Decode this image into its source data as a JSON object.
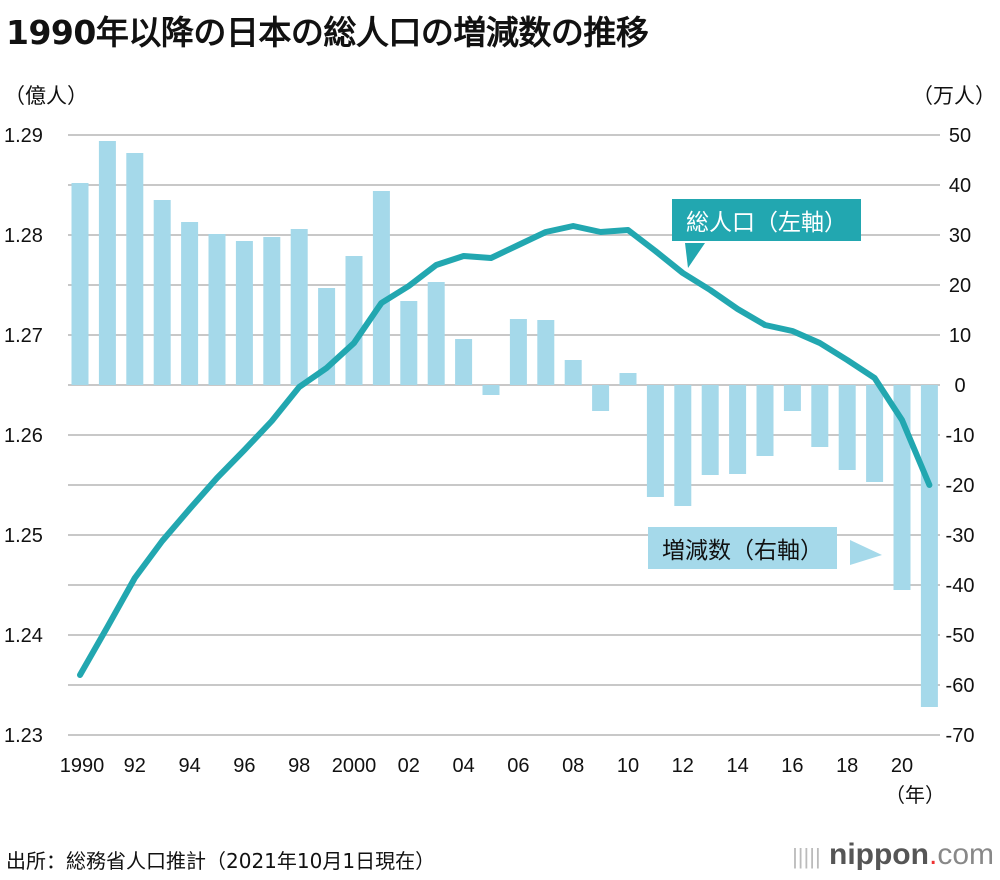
{
  "title": "1990年以降の日本の総人口の増減数の推移",
  "source": "出所：総務省人口推計（2021年10月1日現在）",
  "logo": {
    "name": "nippon",
    "dot": ".",
    "com": "com"
  },
  "chart_data": {
    "type": "bar+line",
    "title": "1990年以降の日本の総人口の増減数の推移",
    "xlabel": "（年）",
    "left_axis": {
      "label": "（億人）",
      "ylim": [
        1.23,
        1.29
      ],
      "ticks": [
        "1.29",
        "1.28",
        "1.27",
        "1.26",
        "1.25",
        "1.24",
        "1.23"
      ]
    },
    "right_axis": {
      "label": "（万人）",
      "ylim": [
        -70,
        50
      ],
      "ticks": [
        "50",
        "40",
        "30",
        "20",
        "10",
        "0",
        "-10",
        "-20",
        "-30",
        "-40",
        "-50",
        "-60",
        "-70"
      ]
    },
    "x_tick_labels": [
      "1990",
      "92",
      "94",
      "96",
      "98",
      "2000",
      "02",
      "04",
      "06",
      "08",
      "10",
      "12",
      "14",
      "16",
      "18",
      "20"
    ],
    "years": [
      1990,
      1991,
      1992,
      1993,
      1994,
      1995,
      1996,
      1997,
      1998,
      1999,
      2000,
      2001,
      2002,
      2003,
      2004,
      2005,
      2006,
      2007,
      2008,
      2009,
      2010,
      2011,
      2012,
      2013,
      2014,
      2015,
      2016,
      2017,
      2018,
      2019,
      2020,
      2021
    ],
    "grid": true,
    "series": [
      {
        "name": "増減数（右軸）",
        "type": "bar",
        "axis": "right",
        "color": "#a5d9ea",
        "values": [
          40.4,
          48.8,
          46.4,
          37,
          32.6,
          30.2,
          28.8,
          29.6,
          31.2,
          19.4,
          25.8,
          38.8,
          16.8,
          20.6,
          9.2,
          -2,
          13.2,
          13,
          5,
          -5.2,
          2.4,
          -22.4,
          -24.2,
          -18,
          -17.8,
          -14.2,
          -5.2,
          -12.4,
          -17,
          -19.4,
          -41,
          -64.4
        ]
      },
      {
        "name": "総人口（左軸）",
        "type": "line",
        "axis": "left",
        "color": "#22a7b0",
        "values": [
          1.236,
          1.2408,
          1.2457,
          1.2494,
          1.2526,
          1.2557,
          1.2585,
          1.2614,
          1.2648,
          1.2667,
          1.2692,
          1.2732,
          1.2749,
          1.277,
          1.2779,
          1.2777,
          1.279,
          1.2803,
          1.2809,
          1.2803,
          1.2805,
          1.2784,
          1.2762,
          1.2745,
          1.2726,
          1.271,
          1.2704,
          1.2692,
          1.2675,
          1.2657,
          1.2615,
          1.255
        ]
      }
    ]
  }
}
